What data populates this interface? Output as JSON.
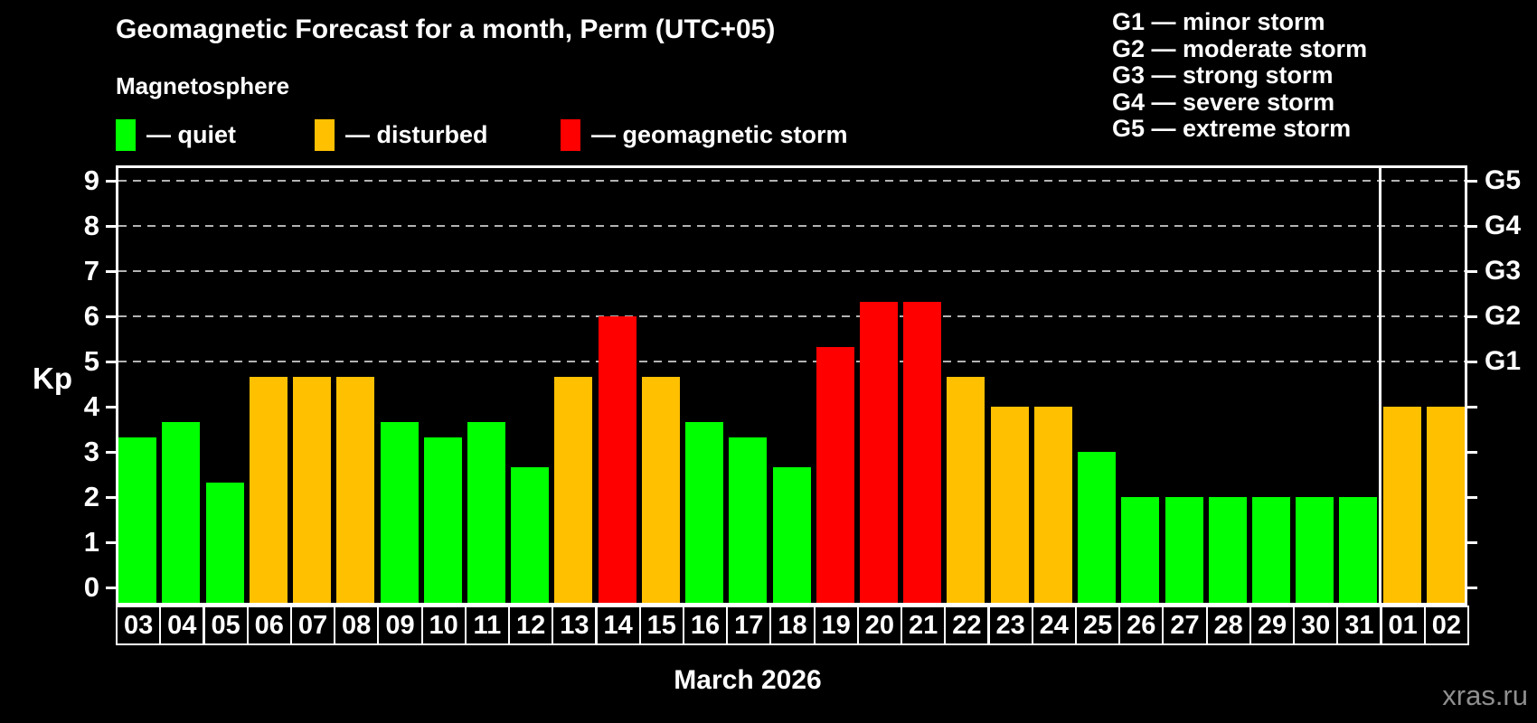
{
  "title": "Geomagnetic Forecast for a month, Perm (UTC+05)",
  "subtitle": "Magnetosphere",
  "legend": {
    "items": [
      {
        "status": "quiet",
        "label": "— quiet",
        "color": "#00ff00"
      },
      {
        "status": "disturbed",
        "label": "— disturbed",
        "color": "#ffc000"
      },
      {
        "status": "storm",
        "label": "— geomagnetic storm",
        "color": "#ff0000"
      }
    ]
  },
  "g_scale_legend": [
    "G1 — minor storm",
    "G2 — moderate storm",
    "G3 — strong storm",
    "G4 — severe storm",
    "G5 — extreme storm"
  ],
  "watermark": "xras.ru",
  "chart_data": {
    "type": "bar",
    "title": "Geomagnetic Forecast for a month, Perm (UTC+05)",
    "subtitle": "Magnetosphere",
    "ylabel": "Kp",
    "xlabel": "March 2026",
    "ylim": [
      0,
      9.3
    ],
    "grid": "dashed horizontal at Kp 5-9 only",
    "legend_position": "top-left",
    "yticks": [
      0,
      1,
      2,
      3,
      4,
      5,
      6,
      7,
      8,
      9
    ],
    "grid_levels": [
      5,
      6,
      7,
      8,
      9
    ],
    "right_axis": [
      {
        "kp": 5,
        "label": "G1"
      },
      {
        "kp": 6,
        "label": "G2"
      },
      {
        "kp": 7,
        "label": "G3"
      },
      {
        "kp": 8,
        "label": "G4"
      },
      {
        "kp": 9,
        "label": "G5"
      }
    ],
    "categories": [
      "03",
      "04",
      "05",
      "06",
      "07",
      "08",
      "09",
      "10",
      "11",
      "12",
      "13",
      "14",
      "15",
      "16",
      "17",
      "18",
      "19",
      "20",
      "21",
      "22",
      "23",
      "24",
      "25",
      "26",
      "27",
      "28",
      "29",
      "30",
      "31",
      "01",
      "02"
    ],
    "values": [
      3.33,
      3.67,
      2.33,
      4.67,
      4.67,
      4.67,
      3.67,
      3.33,
      3.67,
      2.67,
      4.67,
      6.0,
      4.67,
      3.67,
      3.33,
      2.67,
      5.33,
      6.33,
      6.33,
      4.67,
      4.0,
      4.0,
      3.0,
      2.0,
      2.0,
      2.0,
      2.0,
      2.0,
      2.0,
      4.0,
      4.0
    ],
    "statuses": [
      "quiet",
      "quiet",
      "quiet",
      "disturbed",
      "disturbed",
      "disturbed",
      "quiet",
      "quiet",
      "quiet",
      "quiet",
      "disturbed",
      "storm",
      "disturbed",
      "quiet",
      "quiet",
      "quiet",
      "storm",
      "storm",
      "storm",
      "disturbed",
      "disturbed",
      "disturbed",
      "quiet",
      "quiet",
      "quiet",
      "quiet",
      "quiet",
      "quiet",
      "quiet",
      "disturbed",
      "disturbed"
    ],
    "colors": {
      "quiet": "#00ff00",
      "disturbed": "#ffc000",
      "storm": "#ff0000"
    },
    "month_separator_after_index": 28
  }
}
